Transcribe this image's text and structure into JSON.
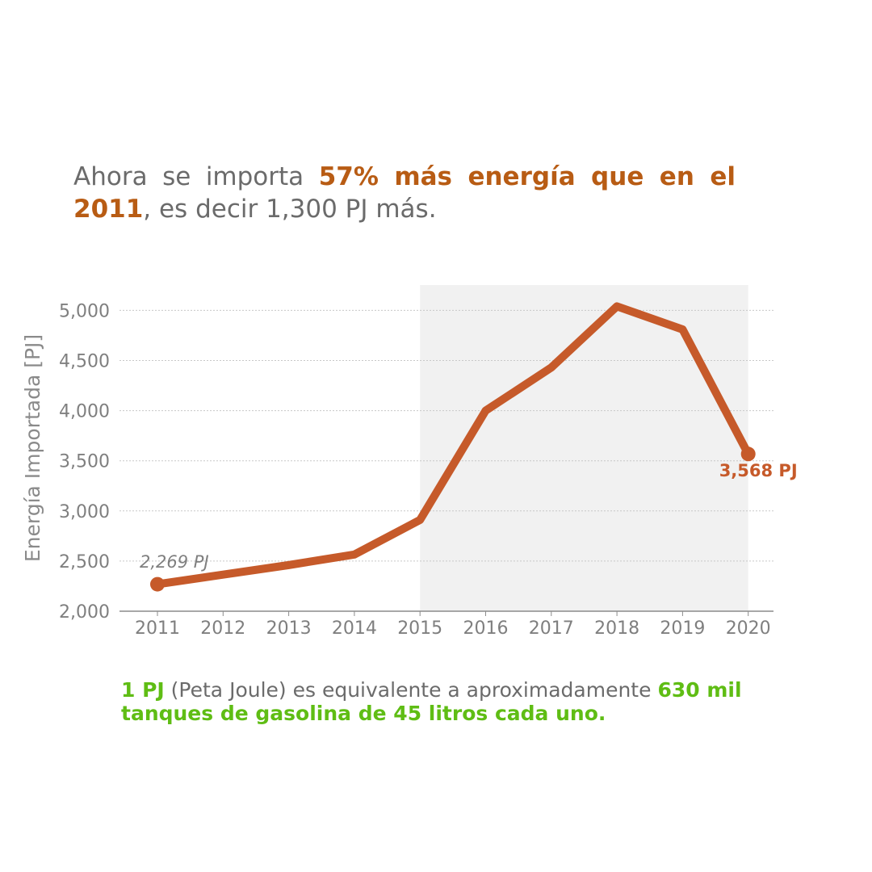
{
  "headline": {
    "part1": "Ahora se importa ",
    "highlight": "57% más energía que en el 2011",
    "part2": ", es decir 1,300 PJ más."
  },
  "footnote": {
    "strong1": "1 PJ",
    "text": " (Peta Joule) es equivalente a aproximadamente ",
    "strong2": "630 mil tanques de gasolina de 45 litros cada uno."
  },
  "chart_data": {
    "type": "line",
    "x": [
      2011,
      2012,
      2013,
      2014,
      2015,
      2016,
      2017,
      2018,
      2019,
      2020
    ],
    "series": [
      {
        "values": [
          2269,
          2365,
          2460,
          2565,
          2910,
          4000,
          4430,
          5040,
          4810,
          3568
        ]
      }
    ],
    "ylabel": "Energía Importada [PJ]",
    "xlabel": "",
    "ylim": [
      2000,
      5000
    ],
    "yticks": [
      "2,000",
      "2,500",
      "3,000",
      "3,500",
      "4,000",
      "4,500",
      "5,000"
    ],
    "xticks": [
      "2011",
      "2012",
      "2013",
      "2014",
      "2015",
      "2016",
      "2017",
      "2018",
      "2019",
      "2020"
    ],
    "shaded_range": [
      2015,
      2020
    ],
    "grid": "horizontal dotted",
    "annotations": [
      {
        "x": 2011,
        "label": "2,269 PJ"
      },
      {
        "x": 2020,
        "label": "3,568 PJ"
      }
    ],
    "colors": {
      "line": "#c65a2a",
      "shade": "#f1f1f1",
      "grid": "#c8c8c8",
      "axis": "#8c8c8c"
    }
  }
}
